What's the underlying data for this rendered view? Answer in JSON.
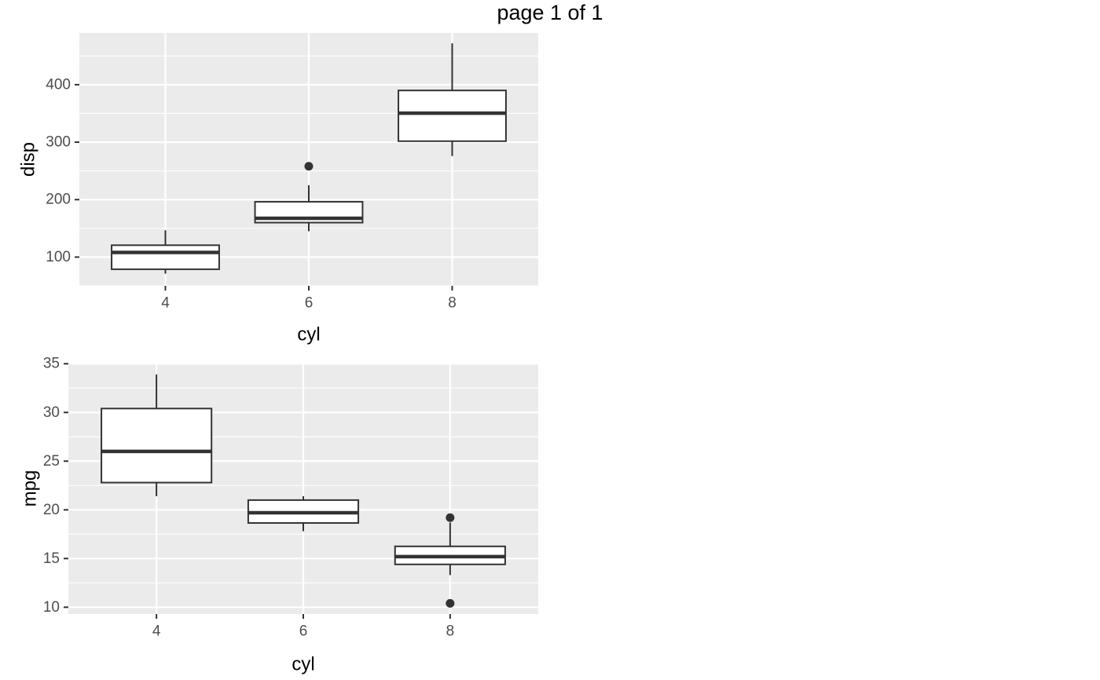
{
  "page": {
    "title": "page 1 of 1"
  },
  "colors": {
    "panel_background": "#EBEBEB",
    "grid_major": "#FFFFFF",
    "box_stroke": "#333333",
    "box_fill": "#FFFFFF",
    "tick_label": "#4D4D4D"
  },
  "chart_data": [
    {
      "type": "boxplot",
      "xlabel": "cyl",
      "ylabel": "disp",
      "categories": [
        "4",
        "6",
        "8"
      ],
      "x": [
        4,
        6,
        8
      ],
      "xlim": [
        2.8,
        9.2
      ],
      "ylim": [
        50,
        490
      ],
      "yticks": [
        100,
        200,
        300,
        400
      ],
      "grid": true,
      "boxes": [
        {
          "category": "4",
          "whisker_low": 71.1,
          "q1": 78.85,
          "median": 108.0,
          "q3": 120.65,
          "whisker_high": 146.7,
          "outliers": []
        },
        {
          "category": "6",
          "whisker_low": 145.0,
          "q1": 160.0,
          "median": 167.6,
          "q3": 196.3,
          "whisker_high": 225.0,
          "outliers": [
            258.0
          ]
        },
        {
          "category": "8",
          "whisker_low": 275.8,
          "q1": 301.75,
          "median": 350.5,
          "q3": 390.0,
          "whisker_high": 472.0,
          "outliers": []
        }
      ]
    },
    {
      "type": "boxplot",
      "xlabel": "cyl",
      "ylabel": "mpg",
      "categories": [
        "4",
        "6",
        "8"
      ],
      "x": [
        4,
        6,
        8
      ],
      "xlim": [
        2.8,
        9.2
      ],
      "ylim": [
        9.3,
        35.1
      ],
      "yticks": [
        10,
        15,
        20,
        25,
        30,
        35
      ],
      "grid": true,
      "boxes": [
        {
          "category": "4",
          "whisker_low": 21.4,
          "q1": 22.8,
          "median": 26.0,
          "q3": 30.4,
          "whisker_high": 33.9,
          "outliers": []
        },
        {
          "category": "6",
          "whisker_low": 17.8,
          "q1": 18.65,
          "median": 19.7,
          "q3": 21.0,
          "whisker_high": 21.4,
          "outliers": []
        },
        {
          "category": "8",
          "whisker_low": 13.3,
          "q1": 14.4,
          "median": 15.2,
          "q3": 16.25,
          "whisker_high": 18.7,
          "outliers": [
            19.2,
            10.4
          ]
        }
      ]
    }
  ]
}
